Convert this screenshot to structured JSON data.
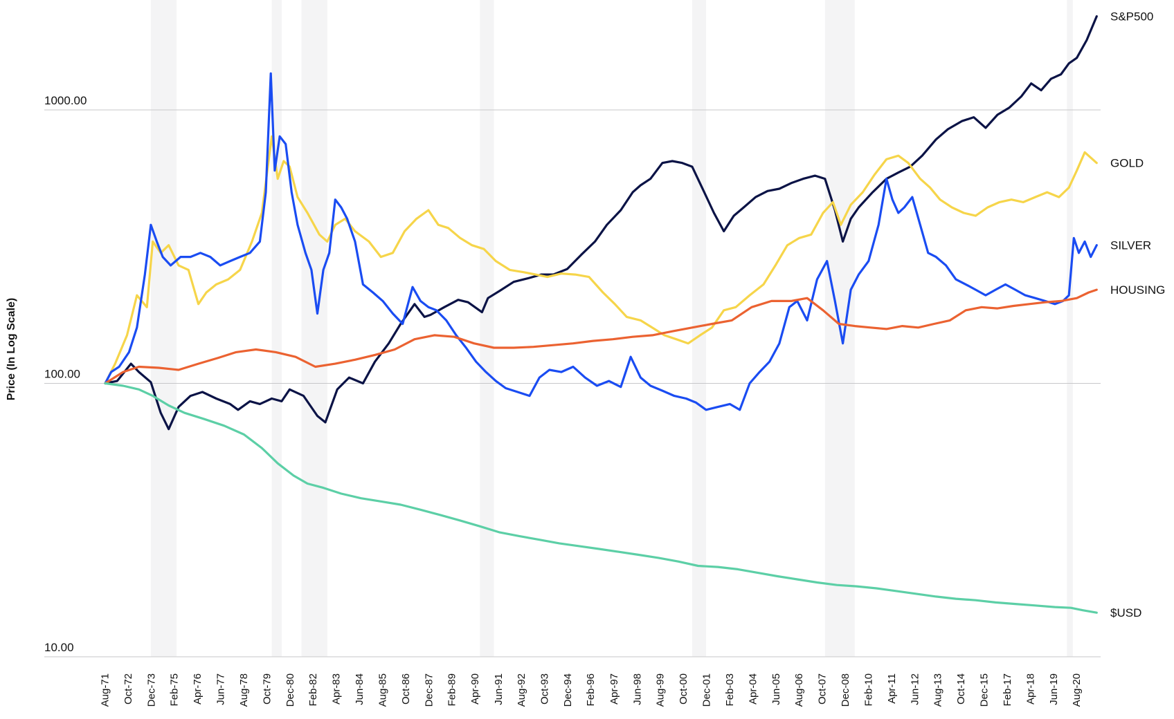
{
  "chart_data": {
    "type": "line",
    "ylabel": "Price (In Log Scale)",
    "yscale": "log",
    "ylim": [
      10,
      2000
    ],
    "yticks": [
      {
        "value": 10,
        "label": "10.00"
      },
      {
        "value": 100,
        "label": "100.00"
      },
      {
        "value": 1000,
        "label": "1000.00"
      }
    ],
    "xlim": [
      1971.6,
      2021.8
    ],
    "xticks": [
      {
        "value": 1971.58,
        "label": "Aug-71"
      },
      {
        "value": 1972.75,
        "label": "Oct-72"
      },
      {
        "value": 1973.92,
        "label": "Dec-73"
      },
      {
        "value": 1975.08,
        "label": "Feb-75"
      },
      {
        "value": 1976.25,
        "label": "Apr-76"
      },
      {
        "value": 1977.42,
        "label": "Jun-77"
      },
      {
        "value": 1978.58,
        "label": "Aug-78"
      },
      {
        "value": 1979.75,
        "label": "Oct-79"
      },
      {
        "value": 1980.92,
        "label": "Dec-80"
      },
      {
        "value": 1982.08,
        "label": "Feb-82"
      },
      {
        "value": 1983.25,
        "label": "Apr-83"
      },
      {
        "value": 1984.42,
        "label": "Jun-84"
      },
      {
        "value": 1985.58,
        "label": "Aug-85"
      },
      {
        "value": 1986.75,
        "label": "Oct-86"
      },
      {
        "value": 1987.92,
        "label": "Dec-87"
      },
      {
        "value": 1989.08,
        "label": "Feb-89"
      },
      {
        "value": 1990.25,
        "label": "Apr-90"
      },
      {
        "value": 1991.42,
        "label": "Jun-91"
      },
      {
        "value": 1992.58,
        "label": "Aug-92"
      },
      {
        "value": 1993.75,
        "label": "Oct-93"
      },
      {
        "value": 1994.92,
        "label": "Dec-94"
      },
      {
        "value": 1996.08,
        "label": "Feb-96"
      },
      {
        "value": 1997.25,
        "label": "Apr-97"
      },
      {
        "value": 1998.42,
        "label": "Jun-98"
      },
      {
        "value": 1999.58,
        "label": "Aug-99"
      },
      {
        "value": 2000.75,
        "label": "Oct-00"
      },
      {
        "value": 2001.92,
        "label": "Dec-01"
      },
      {
        "value": 2003.08,
        "label": "Feb-03"
      },
      {
        "value": 2004.25,
        "label": "Apr-04"
      },
      {
        "value": 2005.42,
        "label": "Jun-05"
      },
      {
        "value": 2006.58,
        "label": "Aug-06"
      },
      {
        "value": 2007.75,
        "label": "Oct-07"
      },
      {
        "value": 2008.92,
        "label": "Dec-08"
      },
      {
        "value": 2010.08,
        "label": "Feb-10"
      },
      {
        "value": 2011.25,
        "label": "Apr-11"
      },
      {
        "value": 2012.42,
        "label": "Jun-12"
      },
      {
        "value": 2013.58,
        "label": "Aug-13"
      },
      {
        "value": 2014.75,
        "label": "Oct-14"
      },
      {
        "value": 2015.92,
        "label": "Dec-15"
      },
      {
        "value": 2017.08,
        "label": "Feb-17"
      },
      {
        "value": 2018.25,
        "label": "Apr-18"
      },
      {
        "value": 2019.42,
        "label": "Jun-19"
      },
      {
        "value": 2020.58,
        "label": "Aug-20"
      }
    ],
    "recessions": [
      [
        1973.9,
        1975.2
      ],
      [
        1980.0,
        1980.5
      ],
      [
        1981.5,
        1982.8
      ],
      [
        1990.5,
        1991.2
      ],
      [
        2001.2,
        2001.9
      ],
      [
        2007.9,
        2009.4
      ],
      [
        2020.1,
        2020.4
      ]
    ],
    "grid": {
      "horizontal": true,
      "vertical": false
    },
    "legend": "direct labels at right end of each line",
    "series": [
      {
        "name": "S&P500",
        "color": "#0b1346",
        "x": [
          1971.6,
          1972.2,
          1972.9,
          1973.3,
          1973.9,
          1974.4,
          1974.8,
          1975.3,
          1975.9,
          1976.5,
          1977.2,
          1977.9,
          1978.3,
          1978.9,
          1979.4,
          1980.0,
          1980.5,
          1980.9,
          1981.6,
          1982.3,
          1982.7,
          1983.3,
          1983.9,
          1984.6,
          1985.2,
          1985.9,
          1986.5,
          1987.2,
          1987.7,
          1988.0,
          1988.7,
          1989.4,
          1989.9,
          1990.6,
          1990.9,
          1991.5,
          1992.2,
          1992.9,
          1993.6,
          1994.2,
          1994.9,
          1995.6,
          1996.3,
          1996.9,
          1997.6,
          1998.2,
          1998.6,
          1999.1,
          1999.7,
          2000.2,
          2000.7,
          2001.2,
          2001.7,
          2002.3,
          2002.8,
          2003.3,
          2003.8,
          2004.4,
          2005.0,
          2005.6,
          2006.2,
          2006.8,
          2007.4,
          2007.9,
          2008.4,
          2008.8,
          2009.2,
          2009.6,
          2010.3,
          2011.0,
          2011.6,
          2012.2,
          2012.8,
          2013.5,
          2014.1,
          2014.8,
          2015.4,
          2016.0,
          2016.6,
          2017.2,
          2017.8,
          2018.3,
          2018.8,
          2019.3,
          2019.8,
          2020.2,
          2020.6,
          2021.1,
          2021.6
        ],
        "y": [
          100,
          102,
          118,
          110,
          101,
          78,
          68,
          82,
          90,
          93,
          88,
          84,
          80,
          86,
          84,
          88,
          86,
          95,
          90,
          76,
          72,
          95,
          105,
          100,
          120,
          140,
          165,
          195,
          175,
          178,
          190,
          202,
          198,
          182,
          205,
          218,
          235,
          242,
          250,
          250,
          262,
          295,
          330,
          380,
          430,
          500,
          530,
          560,
          640,
          650,
          640,
          620,
          520,
          420,
          360,
          410,
          440,
          480,
          505,
          515,
          540,
          560,
          575,
          560,
          430,
          330,
          400,
          440,
          500,
          560,
          590,
          620,
          680,
          780,
          850,
          910,
          940,
          860,
          960,
          1020,
          1120,
          1250,
          1180,
          1300,
          1350,
          1480,
          1550,
          1800,
          2200
        ]
      },
      {
        "name": "GOLD",
        "color": "#f6d54a",
        "x": [
          1971.6,
          1972.1,
          1972.7,
          1973.2,
          1973.7,
          1974.0,
          1974.4,
          1974.8,
          1975.3,
          1975.8,
          1976.3,
          1976.7,
          1977.2,
          1977.8,
          1978.4,
          1979.0,
          1979.5,
          1980.0,
          1980.3,
          1980.6,
          1980.9,
          1981.3,
          1981.8,
          1982.4,
          1982.8,
          1983.2,
          1983.7,
          1984.2,
          1984.9,
          1985.5,
          1986.1,
          1986.7,
          1987.3,
          1987.9,
          1988.4,
          1988.9,
          1989.5,
          1990.1,
          1990.7,
          1991.3,
          1992.0,
          1992.7,
          1993.3,
          1993.9,
          1994.6,
          1995.3,
          1996.0,
          1996.7,
          1997.3,
          1997.9,
          1998.6,
          1999.3,
          1999.8,
          2000.4,
          2001.0,
          2001.6,
          2002.2,
          2002.8,
          2003.4,
          2004.1,
          2004.8,
          2005.4,
          2006.0,
          2006.6,
          2007.2,
          2007.8,
          2008.3,
          2008.7,
          2009.2,
          2009.8,
          2010.4,
          2011.0,
          2011.6,
          2012.1,
          2012.7,
          2013.2,
          2013.7,
          2014.3,
          2014.9,
          2015.5,
          2016.1,
          2016.7,
          2017.3,
          2017.9,
          2018.5,
          2019.1,
          2019.7,
          2020.2,
          2020.6,
          2021.0,
          2021.6
        ],
        "y": [
          100,
          118,
          150,
          210,
          190,
          330,
          300,
          320,
          270,
          260,
          195,
          215,
          230,
          240,
          260,
          330,
          420,
          800,
          560,
          650,
          620,
          480,
          420,
          350,
          330,
          380,
          400,
          360,
          330,
          290,
          300,
          360,
          400,
          430,
          380,
          370,
          340,
          320,
          310,
          280,
          260,
          255,
          250,
          245,
          252,
          250,
          245,
          215,
          195,
          175,
          170,
          158,
          150,
          145,
          140,
          150,
          160,
          185,
          190,
          210,
          230,
          270,
          320,
          340,
          350,
          420,
          460,
          380,
          450,
          500,
          580,
          660,
          680,
          640,
          560,
          520,
          470,
          440,
          420,
          410,
          440,
          460,
          470,
          460,
          480,
          500,
          480,
          520,
          600,
          700,
          640
        ]
      },
      {
        "name": "SILVER",
        "color": "#1a4cf2",
        "x": [
          1971.6,
          1971.9,
          1972.3,
          1972.8,
          1973.2,
          1973.6,
          1973.9,
          1974.2,
          1974.5,
          1974.9,
          1975.4,
          1975.9,
          1976.4,
          1976.9,
          1977.4,
          1977.9,
          1978.4,
          1978.9,
          1979.4,
          1979.7,
          1979.95,
          1980.15,
          1980.4,
          1980.7,
          1981.0,
          1981.3,
          1981.7,
          1982.0,
          1982.3,
          1982.6,
          1982.9,
          1983.2,
          1983.5,
          1983.8,
          1984.2,
          1984.6,
          1985.1,
          1985.6,
          1986.1,
          1986.6,
          1987.1,
          1987.5,
          1987.9,
          1988.3,
          1988.8,
          1989.3,
          1989.8,
          1990.3,
          1990.8,
          1991.3,
          1991.8,
          1992.4,
          1993.0,
          1993.5,
          1994.0,
          1994.6,
          1995.2,
          1995.8,
          1996.4,
          1997.0,
          1997.6,
          1998.1,
          1998.6,
          1999.1,
          1999.7,
          2000.3,
          2000.9,
          2001.4,
          2001.9,
          2002.5,
          2003.1,
          2003.6,
          2004.1,
          2004.6,
          2005.1,
          2005.6,
          2006.1,
          2006.5,
          2007.0,
          2007.5,
          2008.0,
          2008.4,
          2008.8,
          2009.2,
          2009.6,
          2010.1,
          2010.6,
          2011.0,
          2011.3,
          2011.6,
          2011.9,
          2012.3,
          2012.7,
          2013.1,
          2013.5,
          2014.0,
          2014.5,
          2015.0,
          2015.5,
          2016.0,
          2016.5,
          2017.0,
          2017.5,
          2018.0,
          2018.5,
          2019.0,
          2019.5,
          2019.9,
          2020.2,
          2020.45,
          2020.7,
          2021.0,
          2021.3,
          2021.6
        ],
        "y": [
          100,
          110,
          115,
          130,
          160,
          250,
          380,
          330,
          290,
          270,
          290,
          290,
          300,
          290,
          270,
          280,
          290,
          300,
          330,
          500,
          1360,
          600,
          800,
          750,
          500,
          380,
          300,
          260,
          180,
          260,
          300,
          470,
          440,
          400,
          330,
          230,
          215,
          200,
          180,
          165,
          225,
          200,
          190,
          185,
          170,
          150,
          135,
          120,
          110,
          102,
          96,
          93,
          90,
          105,
          112,
          110,
          115,
          105,
          98,
          102,
          97,
          125,
          105,
          98,
          94,
          90,
          88,
          85,
          80,
          82,
          84,
          80,
          100,
          110,
          120,
          140,
          190,
          200,
          170,
          240,
          280,
          200,
          140,
          220,
          250,
          280,
          380,
          560,
          470,
          420,
          440,
          480,
          380,
          300,
          290,
          270,
          240,
          230,
          220,
          210,
          220,
          230,
          220,
          210,
          205,
          200,
          195,
          200,
          210,
          340,
          300,
          330,
          290,
          320
        ]
      },
      {
        "name": "HOUSING",
        "color": "#eb6231",
        "x": [
          1971.6,
          1972.5,
          1973.3,
          1974.3,
          1975.3,
          1976.3,
          1977.3,
          1978.2,
          1979.2,
          1980.2,
          1981.2,
          1982.2,
          1983.2,
          1984.2,
          1985.2,
          1986.2,
          1987.2,
          1988.2,
          1989.2,
          1990.2,
          1991.2,
          1992.2,
          1993.2,
          1994.2,
          1995.2,
          1996.2,
          1997.2,
          1998.2,
          1999.2,
          2000.2,
          2001.2,
          2002.2,
          2003.2,
          2004.2,
          2005.2,
          2006.2,
          2007.0,
          2007.8,
          2008.6,
          2009.4,
          2010.2,
          2011.0,
          2011.8,
          2012.6,
          2013.4,
          2014.2,
          2015.0,
          2015.8,
          2016.6,
          2017.4,
          2018.2,
          2019.0,
          2019.8,
          2020.6,
          2021.2,
          2021.6
        ],
        "y": [
          100,
          110,
          115,
          114,
          112,
          118,
          124,
          130,
          133,
          130,
          125,
          115,
          118,
          122,
          127,
          133,
          145,
          150,
          148,
          140,
          135,
          135,
          136,
          138,
          140,
          143,
          145,
          148,
          150,
          155,
          160,
          165,
          170,
          190,
          200,
          200,
          205,
          185,
          165,
          162,
          160,
          158,
          162,
          160,
          165,
          170,
          185,
          190,
          188,
          192,
          195,
          198,
          200,
          205,
          215,
          220
        ]
      },
      {
        "name": "$USD",
        "color": "#5ccfa6",
        "x": [
          1971.6,
          1972.5,
          1973.3,
          1974.0,
          1974.8,
          1975.6,
          1976.6,
          1977.6,
          1978.6,
          1979.5,
          1980.3,
          1981.1,
          1981.8,
          1982.6,
          1983.5,
          1984.5,
          1985.5,
          1986.5,
          1987.5,
          1988.5,
          1989.5,
          1990.5,
          1991.5,
          1992.5,
          1993.5,
          1994.5,
          1995.5,
          1996.5,
          1997.5,
          1998.5,
          1999.5,
          2000.5,
          2001.5,
          2002.5,
          2003.5,
          2004.5,
          2005.5,
          2006.5,
          2007.5,
          2008.5,
          2009.5,
          2010.5,
          2011.5,
          2012.5,
          2013.5,
          2014.5,
          2015.5,
          2016.5,
          2017.5,
          2018.5,
          2019.5,
          2020.3,
          2020.9,
          2021.6
        ],
        "y": [
          100,
          98,
          95,
          90,
          83,
          78,
          74,
          70,
          65,
          58,
          51,
          46,
          43,
          41.5,
          39.5,
          38,
          37,
          36,
          34.5,
          33,
          31.5,
          30,
          28.5,
          27.6,
          26.8,
          26,
          25.4,
          24.8,
          24.2,
          23.6,
          23,
          22.3,
          21.5,
          21.3,
          20.9,
          20.3,
          19.7,
          19.2,
          18.7,
          18.3,
          18.1,
          17.8,
          17.4,
          17,
          16.6,
          16.3,
          16.1,
          15.8,
          15.6,
          15.4,
          15.2,
          15.1,
          14.8,
          14.5
        ]
      }
    ]
  }
}
